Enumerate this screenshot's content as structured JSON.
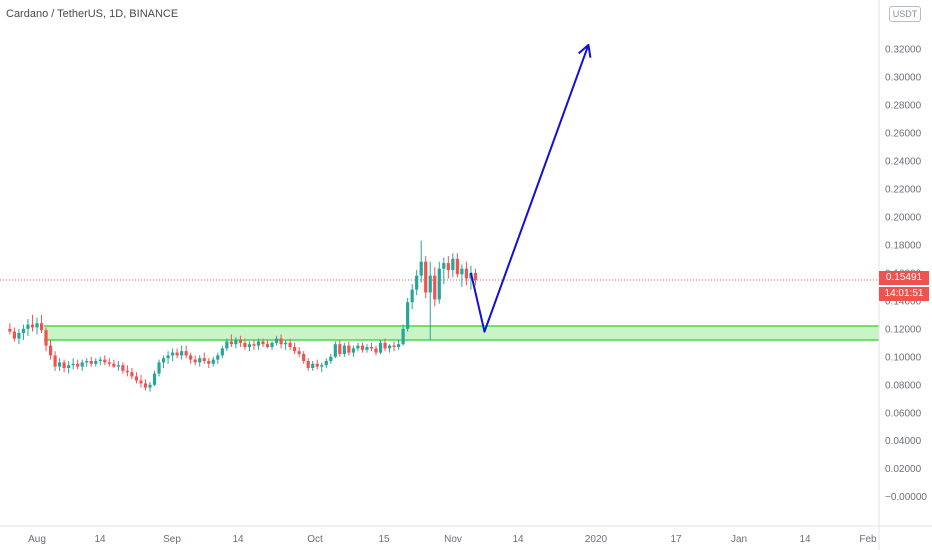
{
  "header": {
    "title": "Cardano / TetherUS, 1D, BINANCE",
    "currency_button": "USDT"
  },
  "price_tag": {
    "price": "0.15491",
    "countdown": "14:01:51"
  },
  "colors": {
    "up": "#26a69a",
    "down": "#ef5350",
    "zone_fill": "#b7f0b1",
    "zone_line": "#4cd64c",
    "arrow": "#1010d8",
    "last_price_line": "#ef5350"
  },
  "chart_data": {
    "type": "candlestick",
    "y_ticks": [
      "0.32000",
      "0.30000",
      "0.28000",
      "0.26000",
      "0.24000",
      "0.22000",
      "0.20000",
      "0.18000",
      "0.16000",
      "0.14000",
      "0.12000",
      "0.10000",
      "0.08000",
      "0.06000",
      "0.04000",
      "0.02000",
      "−0.00000"
    ],
    "x_ticks": [
      "Aug",
      "14",
      "Sep",
      "14",
      "Oct",
      "15",
      "Nov",
      "14",
      "2020",
      "17",
      "Jan",
      "14",
      "Feb"
    ],
    "ylim": [
      -0.02,
      0.34
    ],
    "last_price": 0.15491,
    "support_zone": [
      0.112,
      0.122
    ],
    "projection_path": [
      {
        "date": "2019-11-05",
        "price": 0.16
      },
      {
        "date": "2019-11-08",
        "price": 0.118
      },
      {
        "date": "2019-12-01",
        "price": 0.323
      }
    ],
    "candles": [
      [
        "2019-07-26",
        0.12,
        0.124,
        0.116,
        0.118
      ],
      [
        "2019-07-27",
        0.118,
        0.121,
        0.111,
        0.113
      ],
      [
        "2019-07-28",
        0.113,
        0.12,
        0.109,
        0.117
      ],
      [
        "2019-07-29",
        0.117,
        0.123,
        0.112,
        0.12
      ],
      [
        "2019-07-30",
        0.12,
        0.127,
        0.115,
        0.123
      ],
      [
        "2019-07-31",
        0.123,
        0.13,
        0.118,
        0.121
      ],
      [
        "2019-08-01",
        0.121,
        0.128,
        0.116,
        0.124
      ],
      [
        "2019-08-02",
        0.124,
        0.13,
        0.117,
        0.119
      ],
      [
        "2019-08-03",
        0.119,
        0.121,
        0.104,
        0.108
      ],
      [
        "2019-08-04",
        0.108,
        0.112,
        0.098,
        0.101
      ],
      [
        "2019-08-05",
        0.101,
        0.104,
        0.09,
        0.093
      ],
      [
        "2019-08-06",
        0.093,
        0.099,
        0.09,
        0.096
      ],
      [
        "2019-08-07",
        0.096,
        0.098,
        0.089,
        0.092
      ],
      [
        "2019-08-08",
        0.092,
        0.097,
        0.088,
        0.094
      ],
      [
        "2019-08-09",
        0.094,
        0.099,
        0.091,
        0.095
      ],
      [
        "2019-08-10",
        0.095,
        0.098,
        0.091,
        0.093
      ],
      [
        "2019-08-11",
        0.093,
        0.098,
        0.09,
        0.096
      ],
      [
        "2019-08-12",
        0.096,
        0.099,
        0.093,
        0.097
      ],
      [
        "2019-08-13",
        0.097,
        0.1,
        0.093,
        0.095
      ],
      [
        "2019-08-14",
        0.095,
        0.099,
        0.093,
        0.097
      ],
      [
        "2019-08-15",
        0.097,
        0.1,
        0.094,
        0.098
      ],
      [
        "2019-08-16",
        0.098,
        0.101,
        0.094,
        0.096
      ],
      [
        "2019-08-17",
        0.096,
        0.099,
        0.093,
        0.095
      ],
      [
        "2019-08-18",
        0.095,
        0.098,
        0.092,
        0.093
      ],
      [
        "2019-08-19",
        0.093,
        0.097,
        0.09,
        0.094
      ],
      [
        "2019-08-20",
        0.094,
        0.096,
        0.088,
        0.09
      ],
      [
        "2019-08-21",
        0.09,
        0.094,
        0.086,
        0.089
      ],
      [
        "2019-08-22",
        0.089,
        0.092,
        0.084,
        0.086
      ],
      [
        "2019-08-23",
        0.086,
        0.089,
        0.081,
        0.083
      ],
      [
        "2019-08-24",
        0.083,
        0.087,
        0.078,
        0.081
      ],
      [
        "2019-08-25",
        0.081,
        0.084,
        0.076,
        0.078
      ],
      [
        "2019-08-26",
        0.078,
        0.082,
        0.075,
        0.08
      ],
      [
        "2019-08-27",
        0.08,
        0.09,
        0.079,
        0.088
      ],
      [
        "2019-08-28",
        0.088,
        0.098,
        0.086,
        0.096
      ],
      [
        "2019-08-29",
        0.096,
        0.101,
        0.092,
        0.099
      ],
      [
        "2019-08-30",
        0.099,
        0.104,
        0.095,
        0.101
      ],
      [
        "2019-08-31",
        0.101,
        0.106,
        0.097,
        0.103
      ],
      [
        "2019-09-01",
        0.103,
        0.106,
        0.099,
        0.101
      ],
      [
        "2019-09-02",
        0.101,
        0.108,
        0.098,
        0.104
      ],
      [
        "2019-09-03",
        0.104,
        0.108,
        0.099,
        0.101
      ],
      [
        "2019-09-04",
        0.101,
        0.103,
        0.095,
        0.098
      ],
      [
        "2019-09-05",
        0.098,
        0.101,
        0.094,
        0.096
      ],
      [
        "2019-09-06",
        0.096,
        0.101,
        0.093,
        0.099
      ],
      [
        "2019-09-07",
        0.099,
        0.103,
        0.095,
        0.097
      ],
      [
        "2019-09-08",
        0.097,
        0.099,
        0.092,
        0.095
      ],
      [
        "2019-09-09",
        0.095,
        0.1,
        0.093,
        0.098
      ],
      [
        "2019-09-10",
        0.098,
        0.103,
        0.095,
        0.101
      ],
      [
        "2019-09-11",
        0.101,
        0.108,
        0.099,
        0.106
      ],
      [
        "2019-09-12",
        0.106,
        0.113,
        0.104,
        0.111
      ],
      [
        "2019-09-13",
        0.111,
        0.116,
        0.107,
        0.109
      ],
      [
        "2019-09-14",
        0.109,
        0.114,
        0.106,
        0.112
      ],
      [
        "2019-09-15",
        0.112,
        0.115,
        0.107,
        0.11
      ],
      [
        "2019-09-16",
        0.11,
        0.113,
        0.105,
        0.107
      ],
      [
        "2019-09-17",
        0.107,
        0.111,
        0.104,
        0.109
      ],
      [
        "2019-09-18",
        0.109,
        0.112,
        0.105,
        0.108
      ],
      [
        "2019-09-19",
        0.108,
        0.113,
        0.105,
        0.111
      ],
      [
        "2019-09-20",
        0.111,
        0.113,
        0.107,
        0.109
      ],
      [
        "2019-09-21",
        0.109,
        0.112,
        0.106,
        0.107
      ],
      [
        "2019-09-22",
        0.107,
        0.111,
        0.105,
        0.11
      ],
      [
        "2019-09-23",
        0.11,
        0.115,
        0.108,
        0.113
      ],
      [
        "2019-09-24",
        0.113,
        0.116,
        0.106,
        0.109
      ],
      [
        "2019-09-25",
        0.109,
        0.112,
        0.105,
        0.11
      ],
      [
        "2019-09-26",
        0.11,
        0.113,
        0.105,
        0.107
      ],
      [
        "2019-09-27",
        0.107,
        0.11,
        0.102,
        0.104
      ],
      [
        "2019-09-28",
        0.104,
        0.107,
        0.1,
        0.102
      ],
      [
        "2019-09-29",
        0.102,
        0.104,
        0.095,
        0.097
      ],
      [
        "2019-09-30",
        0.097,
        0.099,
        0.09,
        0.092
      ],
      [
        "2019-10-01",
        0.092,
        0.097,
        0.09,
        0.095
      ],
      [
        "2019-10-02",
        0.095,
        0.098,
        0.091,
        0.093
      ],
      [
        "2019-10-03",
        0.093,
        0.096,
        0.089,
        0.094
      ],
      [
        "2019-10-04",
        0.094,
        0.099,
        0.092,
        0.097
      ],
      [
        "2019-10-05",
        0.097,
        0.102,
        0.095,
        0.1
      ],
      [
        "2019-10-06",
        0.1,
        0.111,
        0.099,
        0.109
      ],
      [
        "2019-10-07",
        0.109,
        0.112,
        0.1,
        0.102
      ],
      [
        "2019-10-08",
        0.102,
        0.11,
        0.1,
        0.108
      ],
      [
        "2019-10-09",
        0.108,
        0.111,
        0.101,
        0.103
      ],
      [
        "2019-10-10",
        0.103,
        0.108,
        0.1,
        0.106
      ],
      [
        "2019-10-11",
        0.106,
        0.11,
        0.104,
        0.108
      ],
      [
        "2019-10-12",
        0.108,
        0.11,
        0.103,
        0.105
      ],
      [
        "2019-10-13",
        0.105,
        0.109,
        0.103,
        0.107
      ],
      [
        "2019-10-14",
        0.107,
        0.11,
        0.104,
        0.106
      ],
      [
        "2019-10-15",
        0.106,
        0.108,
        0.101,
        0.103
      ],
      [
        "2019-10-16",
        0.103,
        0.112,
        0.102,
        0.11
      ],
      [
        "2019-10-17",
        0.11,
        0.113,
        0.104,
        0.106
      ],
      [
        "2019-10-18",
        0.106,
        0.109,
        0.103,
        0.108
      ],
      [
        "2019-10-19",
        0.108,
        0.111,
        0.104,
        0.107
      ],
      [
        "2019-10-20",
        0.107,
        0.112,
        0.105,
        0.109
      ],
      [
        "2019-10-21",
        0.109,
        0.123,
        0.108,
        0.12
      ],
      [
        "2019-10-22",
        0.12,
        0.142,
        0.118,
        0.139
      ],
      [
        "2019-10-23",
        0.139,
        0.152,
        0.134,
        0.148
      ],
      [
        "2019-10-24",
        0.148,
        0.162,
        0.144,
        0.158
      ],
      [
        "2019-10-25",
        0.158,
        0.183,
        0.153,
        0.168
      ],
      [
        "2019-10-26",
        0.168,
        0.172,
        0.142,
        0.146
      ],
      [
        "2019-10-27",
        0.146,
        0.168,
        0.112,
        0.158
      ],
      [
        "2019-10-28",
        0.158,
        0.164,
        0.136,
        0.141
      ],
      [
        "2019-10-29",
        0.141,
        0.168,
        0.138,
        0.163
      ],
      [
        "2019-10-30",
        0.163,
        0.171,
        0.152,
        0.167
      ],
      [
        "2019-10-31",
        0.167,
        0.172,
        0.156,
        0.162
      ],
      [
        "2019-11-01",
        0.162,
        0.174,
        0.157,
        0.17
      ],
      [
        "2019-11-02",
        0.17,
        0.174,
        0.157,
        0.159
      ],
      [
        "2019-11-03",
        0.159,
        0.166,
        0.15,
        0.163
      ],
      [
        "2019-11-04",
        0.163,
        0.168,
        0.151,
        0.156
      ],
      [
        "2019-11-05",
        0.156,
        0.165,
        0.148,
        0.16
      ],
      [
        "2019-11-06",
        0.16,
        0.163,
        0.151,
        0.155
      ]
    ]
  }
}
